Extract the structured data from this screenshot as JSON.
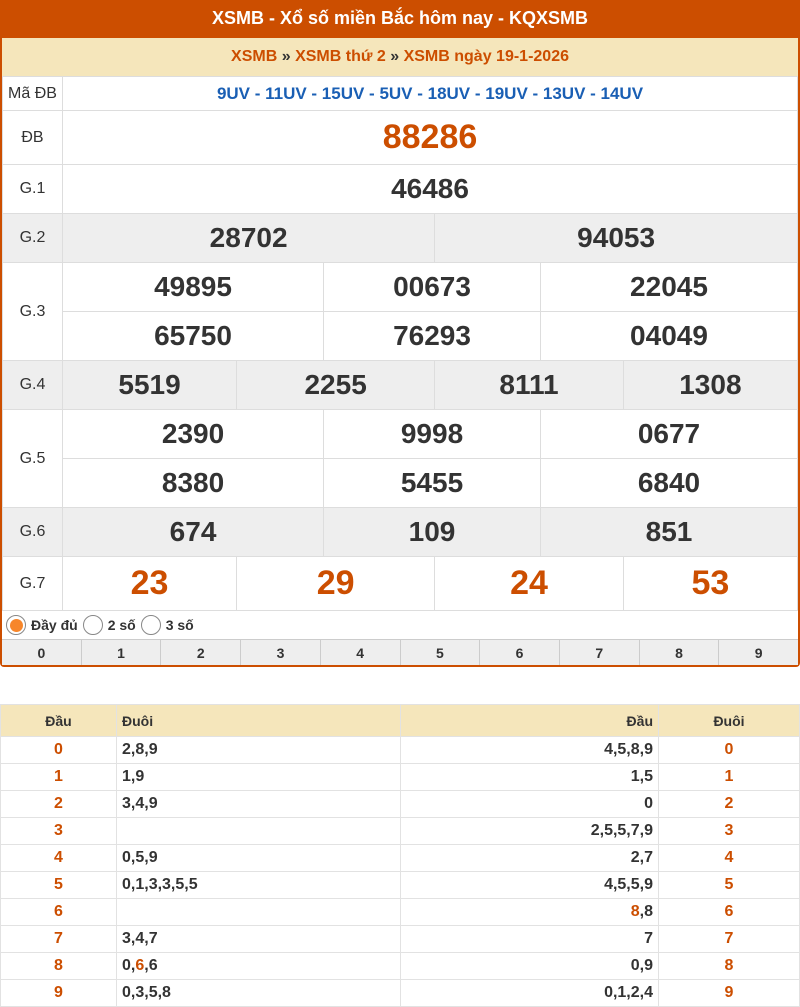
{
  "header": {
    "title": "XSMB - Xổ số miền Bắc hôm nay - KQXSMB"
  },
  "breadcrumb": {
    "items": [
      "XSMB",
      "XSMB thứ 2",
      "XSMB ngày 19-1-2026"
    ],
    "sep": "»"
  },
  "results": {
    "ma_db": {
      "label": "Mã ĐB",
      "value": "9UV - 11UV - 15UV - 5UV - 18UV - 19UV - 13UV - 14UV"
    },
    "rows": [
      {
        "label": "ĐB",
        "lines": [
          [
            "88286"
          ]
        ],
        "red": true,
        "alt": false,
        "size": 34
      },
      {
        "label": "G.1",
        "lines": [
          [
            "46486"
          ]
        ],
        "alt": false
      },
      {
        "label": "G.2",
        "lines": [
          [
            "28702",
            "94053"
          ]
        ],
        "alt": true
      },
      {
        "label": "G.3",
        "lines": [
          [
            "49895",
            "00673",
            "22045"
          ],
          [
            "65750",
            "76293",
            "04049"
          ]
        ],
        "alt": false
      },
      {
        "label": "G.4",
        "lines": [
          [
            "5519",
            "2255",
            "8111",
            "1308"
          ]
        ],
        "alt": true
      },
      {
        "label": "G.5",
        "lines": [
          [
            "2390",
            "9998",
            "0677"
          ],
          [
            "8380",
            "5455",
            "6840"
          ]
        ],
        "alt": false
      },
      {
        "label": "G.6",
        "lines": [
          [
            "674",
            "109",
            "851"
          ]
        ],
        "alt": true
      },
      {
        "label": "G.7",
        "lines": [
          [
            "23",
            "29",
            "24",
            "53"
          ]
        ],
        "red": true,
        "alt": false,
        "size": 34
      }
    ]
  },
  "display_options": [
    {
      "label": "Đầy đủ",
      "selected": true
    },
    {
      "label": "2 số",
      "selected": false
    },
    {
      "label": "3 số",
      "selected": false
    }
  ],
  "digits": [
    "0",
    "1",
    "2",
    "3",
    "4",
    "5",
    "6",
    "7",
    "8",
    "9"
  ],
  "loto": {
    "headers": [
      "Đầu",
      "Đuôi",
      "Đầu",
      "Đuôi"
    ],
    "rows": [
      {
        "dau": "0",
        "duoi": [
          [
            "2,8,9",
            false
          ]
        ],
        "dau2": [
          [
            "4,5,8,9",
            false
          ]
        ],
        "duoi2": "0"
      },
      {
        "dau": "1",
        "duoi": [
          [
            "1,9",
            false
          ]
        ],
        "dau2": [
          [
            "1,5",
            false
          ]
        ],
        "duoi2": "1"
      },
      {
        "dau": "2",
        "duoi": [
          [
            "3,4,9",
            false
          ]
        ],
        "dau2": [
          [
            "0",
            false
          ]
        ],
        "duoi2": "2"
      },
      {
        "dau": "3",
        "duoi": [],
        "dau2": [
          [
            "2,5,5,7,9",
            false
          ]
        ],
        "duoi2": "3"
      },
      {
        "dau": "4",
        "duoi": [
          [
            "0,5,9",
            false
          ]
        ],
        "dau2": [
          [
            "2,7",
            false
          ]
        ],
        "duoi2": "4"
      },
      {
        "dau": "5",
        "duoi": [
          [
            "0,1,3,3,5,5",
            false
          ]
        ],
        "dau2": [
          [
            "4,5,5,9",
            false
          ]
        ],
        "duoi2": "5"
      },
      {
        "dau": "6",
        "duoi": [],
        "dau2": [
          [
            "8",
            true
          ],
          [
            ",8",
            false
          ]
        ],
        "duoi2": "6"
      },
      {
        "dau": "7",
        "duoi": [
          [
            "3,4,7",
            false
          ]
        ],
        "dau2": [
          [
            "7",
            false
          ]
        ],
        "duoi2": "7"
      },
      {
        "dau": "8",
        "duoi": [
          [
            "0,",
            false
          ],
          [
            "6",
            true
          ],
          [
            ",6",
            false
          ]
        ],
        "dau2": [
          [
            "0,9",
            false
          ]
        ],
        "duoi2": "8"
      },
      {
        "dau": "9",
        "duoi": [
          [
            "0,3,5,8",
            false
          ]
        ],
        "dau2": [
          [
            "0,1,2,4",
            false
          ]
        ],
        "duoi2": "9"
      }
    ]
  },
  "colors": {
    "brand": "#cc4e00",
    "header_bg": "#f5e6bb",
    "code_blue": "#1a5fb4"
  }
}
